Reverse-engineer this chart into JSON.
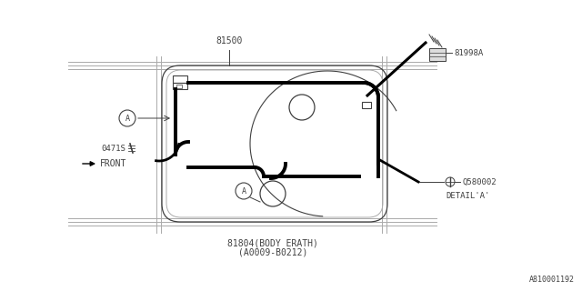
{
  "bg_color": "#ffffff",
  "BK": "#000000",
  "DK": "#404040",
  "LC": "#aaaaaa",
  "title_bottom": "81804(BODY ERATH)",
  "title_bottom2": "(A0009-B0212)",
  "label_81500": "81500",
  "label_81998A": "81998A",
  "label_0471S": "0471S",
  "label_FRONT": "FRONT",
  "label_Q580002": "Q580002",
  "label_DETAIL_A": "DETAIL'A'",
  "label_ref": "A810001192",
  "fig_width": 6.4,
  "fig_height": 3.2,
  "dpi": 100
}
